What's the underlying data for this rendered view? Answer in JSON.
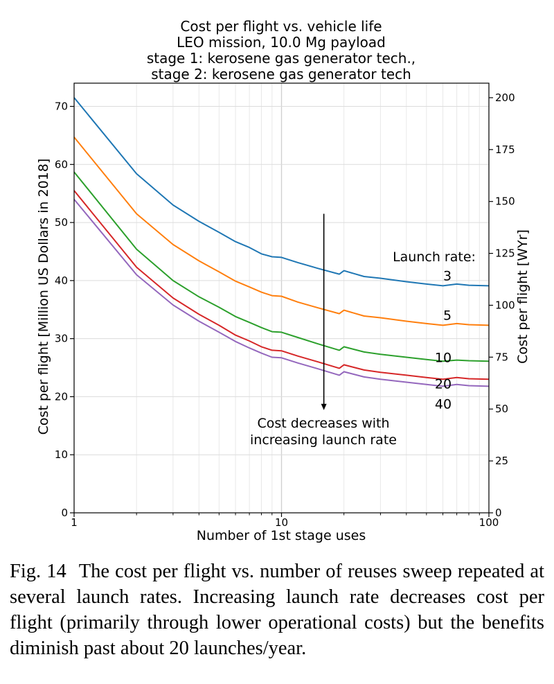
{
  "chart_data": {
    "type": "line",
    "title": [
      "Cost per flight vs. vehicle life",
      "LEO mission, 10.0 Mg payload",
      "stage 1: kerosene gas generator tech.,",
      "stage 2: kerosene gas generator tech"
    ],
    "xlabel": "Number of 1st stage uses",
    "ylabel": "Cost per flight [Million US Dollars in 2018]",
    "ylabel_right": "Cost per flight [WYr]",
    "xscale": "log",
    "xlim": [
      1,
      100
    ],
    "ylim": [
      0,
      74
    ],
    "ylim_right": [
      0,
      207
    ],
    "x_ticks": [
      {
        "value": 1,
        "label": "1"
      },
      {
        "value": 10,
        "label": "10"
      },
      {
        "value": 100,
        "label": "100"
      }
    ],
    "y_ticks": [
      {
        "value": 0,
        "label": "0"
      },
      {
        "value": 10,
        "label": "10"
      },
      {
        "value": 20,
        "label": "20"
      },
      {
        "value": 30,
        "label": "30"
      },
      {
        "value": 40,
        "label": "40"
      },
      {
        "value": 50,
        "label": "50"
      },
      {
        "value": 60,
        "label": "60"
      },
      {
        "value": 70,
        "label": "70"
      }
    ],
    "y_ticks_right": [
      {
        "value": 0,
        "label": "0"
      },
      {
        "value": 25,
        "label": "25"
      },
      {
        "value": 50,
        "label": "50"
      },
      {
        "value": 75,
        "label": "75"
      },
      {
        "value": 100,
        "label": "100"
      },
      {
        "value": 125,
        "label": "125"
      },
      {
        "value": 150,
        "label": "150"
      },
      {
        "value": 175,
        "label": "175"
      },
      {
        "value": 200,
        "label": "200"
      }
    ],
    "grid": true,
    "legend_title": "Launch rate:",
    "series": [
      {
        "name": "3",
        "color": "#1f77b4",
        "x": [
          1,
          2,
          3,
          4,
          5,
          6,
          7,
          8,
          9,
          10,
          12,
          15,
          19,
          20,
          25,
          30,
          40,
          50,
          60,
          70,
          80,
          100
        ],
        "y": [
          71.5,
          58.4,
          53.0,
          50.2,
          48.3,
          46.7,
          45.7,
          44.6,
          44.1,
          44.0,
          43.1,
          42.1,
          41.1,
          41.7,
          40.7,
          40.4,
          39.8,
          39.4,
          39.1,
          39.4,
          39.2,
          39.1
        ]
      },
      {
        "name": "5",
        "color": "#ff7f0e",
        "x": [
          1,
          2,
          3,
          4,
          5,
          6,
          7,
          8,
          9,
          10,
          12,
          15,
          19,
          20,
          25,
          30,
          40,
          50,
          60,
          70,
          80,
          100
        ],
        "y": [
          64.7,
          51.5,
          46.2,
          43.4,
          41.5,
          39.9,
          38.9,
          38.0,
          37.4,
          37.3,
          36.3,
          35.3,
          34.3,
          34.9,
          33.9,
          33.6,
          33.0,
          32.6,
          32.3,
          32.6,
          32.4,
          32.3
        ]
      },
      {
        "name": "10",
        "color": "#2ca02c",
        "x": [
          1,
          2,
          3,
          4,
          5,
          6,
          7,
          8,
          9,
          10,
          12,
          15,
          19,
          20,
          25,
          30,
          40,
          50,
          60,
          70,
          80,
          100
        ],
        "y": [
          58.7,
          45.4,
          40.0,
          37.2,
          35.4,
          33.8,
          32.8,
          31.9,
          31.2,
          31.1,
          30.2,
          29.1,
          28.0,
          28.6,
          27.7,
          27.3,
          26.8,
          26.4,
          26.1,
          26.3,
          26.2,
          26.1
        ]
      },
      {
        "name": "20",
        "color": "#d62728",
        "x": [
          1,
          2,
          3,
          4,
          5,
          6,
          7,
          8,
          9,
          10,
          12,
          15,
          19,
          20,
          25,
          30,
          40,
          50,
          60,
          70,
          80,
          100
        ],
        "y": [
          55.5,
          42.3,
          37.0,
          34.2,
          32.3,
          30.6,
          29.6,
          28.6,
          28.0,
          27.9,
          27.0,
          26.0,
          24.9,
          25.5,
          24.6,
          24.2,
          23.7,
          23.3,
          23.0,
          23.3,
          23.1,
          23.0
        ]
      },
      {
        "name": "40",
        "color": "#9467bd",
        "x": [
          1,
          2,
          3,
          4,
          5,
          6,
          7,
          8,
          9,
          10,
          12,
          15,
          19,
          20,
          25,
          30,
          40,
          50,
          60,
          70,
          80,
          100
        ],
        "y": [
          54.0,
          41.0,
          35.8,
          33.0,
          31.1,
          29.5,
          28.4,
          27.5,
          26.8,
          26.7,
          25.8,
          24.8,
          23.7,
          24.3,
          23.4,
          23.0,
          22.5,
          22.1,
          21.8,
          22.1,
          21.9,
          21.8
        ]
      }
    ],
    "annotation": {
      "lines": [
        "Cost decreases with",
        "increasing launch rate"
      ],
      "arrow_x": 16,
      "arrow_y_from": 51.5,
      "arrow_y_to": 17.7
    }
  },
  "caption": {
    "label": "Fig. 14",
    "text": "The cost per flight vs. number of reuses sweep repeated at several launch rates. Increasing launch rate decreases cost per flight (primarily through lower operational costs) but the benefits diminish past about 20 launches/year."
  }
}
